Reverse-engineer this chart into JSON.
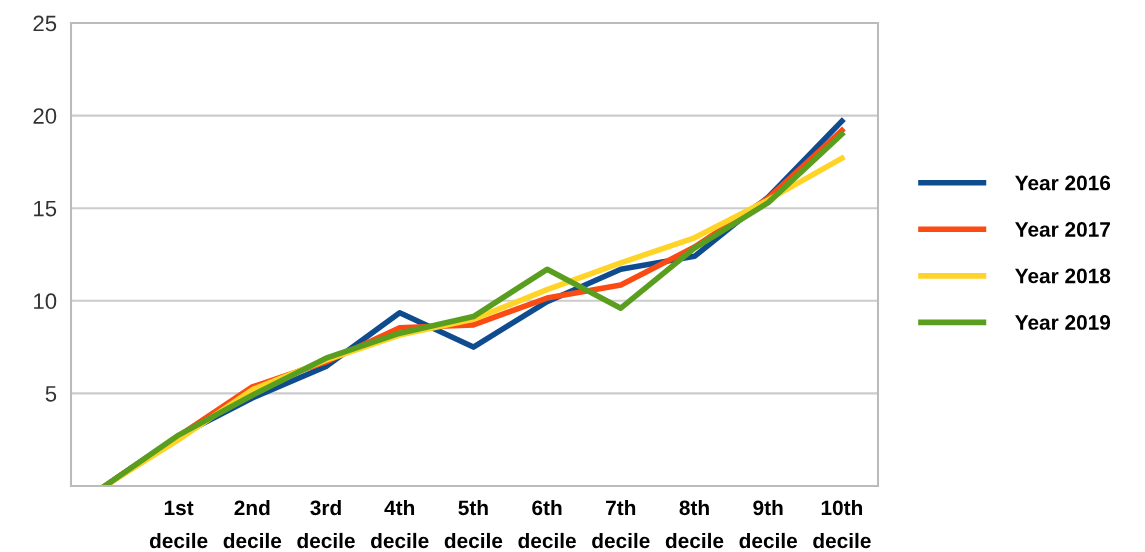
{
  "chart_data": {
    "type": "line",
    "categories": [
      null,
      "1st\ndecile",
      "2nd\ndecile",
      "3rd\ndecile",
      "4th\ndecile",
      "5th\ndecile",
      "6th\ndecile",
      "7th\ndecile",
      "8th\ndecile",
      "9th\ndecile",
      "10th\ndecile"
    ],
    "series": [
      {
        "name": "Year 2016",
        "color": "#0f4c8f",
        "values": [
          0,
          2.7,
          4.75,
          6.45,
          9.35,
          7.5,
          9.95,
          11.7,
          12.4,
          15.6,
          19.7
        ]
      },
      {
        "name": "Year 2017",
        "color": "#fb4b14",
        "values": [
          0,
          2.7,
          5.35,
          6.7,
          8.55,
          8.7,
          10.15,
          10.85,
          12.9,
          15.55,
          19.2
        ]
      },
      {
        "name": "Year 2018",
        "color": "#ffd426",
        "values": [
          0,
          2.5,
          5.2,
          6.8,
          8.15,
          9.0,
          10.6,
          12.05,
          13.4,
          15.45,
          17.7
        ]
      },
      {
        "name": "Year 2019",
        "color": "#5a9e1f",
        "values": [
          0,
          2.75,
          4.9,
          6.9,
          8.25,
          9.15,
          11.7,
          9.6,
          12.85,
          15.3,
          19.0
        ]
      }
    ],
    "ylim": [
      0,
      25
    ],
    "yticks": [
      5,
      10,
      15,
      20,
      25
    ],
    "grid": "y",
    "legend": "right",
    "marker": "none",
    "line_style": "solid"
  }
}
